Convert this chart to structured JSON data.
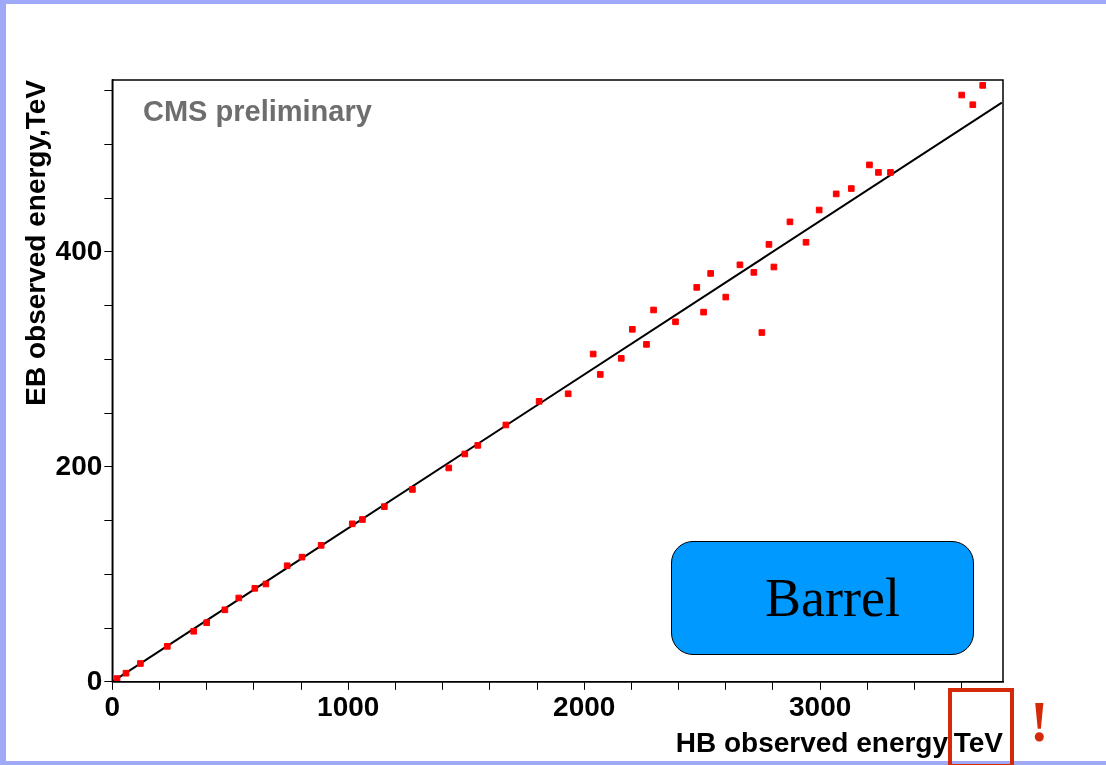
{
  "chart_data": {
    "type": "scatter",
    "xlabel": "HB observed energy,TeV",
    "ylabel": "EB observed energy,TeV",
    "annotations": [
      "CMS preliminary",
      "Barrel",
      "!"
    ],
    "xlim": [
      0,
      3775
    ],
    "ylim": [
      0,
      560
    ],
    "xticks": [
      0,
      {
        "value": 200,
        "label": null
      },
      {
        "value": 400,
        "label": null
      },
      {
        "value": 600,
        "label": null
      },
      {
        "value": 800,
        "label": null
      },
      1000,
      {
        "value": 1200,
        "label": null
      },
      {
        "value": 1400,
        "label": null
      },
      {
        "value": 1600,
        "label": null
      },
      {
        "value": 1800,
        "label": null
      },
      2000,
      {
        "value": 2200,
        "label": null
      },
      {
        "value": 2400,
        "label": null
      },
      {
        "value": 2600,
        "label": null
      },
      {
        "value": 2800,
        "label": null
      },
      3000,
      {
        "value": 3200,
        "label": null
      },
      {
        "value": 3400,
        "label": null
      },
      {
        "value": 3600,
        "label": null
      }
    ],
    "yticks": [
      0,
      {
        "value": 50,
        "label": null
      },
      {
        "value": 100,
        "label": null
      },
      {
        "value": 150,
        "label": null
      },
      200,
      {
        "value": 250,
        "label": null
      },
      {
        "value": 300,
        "label": null
      },
      {
        "value": 350,
        "label": null
      },
      400,
      {
        "value": 450,
        "label": null
      },
      {
        "value": 500,
        "label": null
      },
      {
        "value": 550,
        "label": null
      }
    ],
    "grid": false,
    "legend": false,
    "series": [
      {
        "type": "scatter",
        "color": "#ff0000",
        "marker": "square",
        "x": [
          20,
          58,
          119,
          233,
          345,
          400,
          477,
          536,
          604,
          651,
          741,
          804,
          885,
          1017,
          1060,
          1153,
          1272,
          1426,
          1494,
          1549,
          1668,
          1809,
          1932,
          2038,
          2068,
          2157,
          2204,
          2264,
          2294,
          2387,
          2477,
          2506,
          2536,
          2600,
          2660,
          2719,
          2753,
          2783,
          2804,
          2872,
          2940,
          2996,
          3068,
          3132,
          3209,
          3247,
          3298,
          3600,
          3647,
          3689
        ],
        "values": [
          3,
          8,
          17,
          33,
          47,
          55,
          67,
          78,
          87,
          91,
          108,
          116,
          127,
          147,
          151,
          163,
          179,
          199,
          212,
          220,
          239,
          261,
          268,
          305,
          286,
          301,
          328,
          314,
          346,
          335,
          367,
          344,
          380,
          358,
          388,
          381,
          325,
          407,
          386,
          428,
          409,
          439,
          454,
          459,
          481,
          474,
          474,
          546,
          537,
          555
        ]
      },
      {
        "type": "line",
        "color": "#000000",
        "marker": "none",
        "x": [
          0,
          3770
        ],
        "values": [
          0,
          539
        ]
      }
    ]
  }
}
